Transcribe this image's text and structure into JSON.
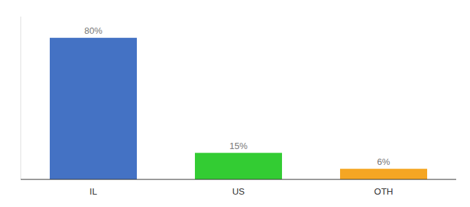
{
  "chart_data": {
    "type": "bar",
    "categories": [
      "IL",
      "US",
      "OTH"
    ],
    "values": [
      80,
      15,
      6
    ],
    "value_labels": [
      "80%",
      "15%",
      "6%"
    ],
    "colors": [
      "#4472c4",
      "#33cc33",
      "#f5a623"
    ],
    "ylim": [
      0,
      92
    ],
    "data_labels": true,
    "tick_labels": "x"
  }
}
